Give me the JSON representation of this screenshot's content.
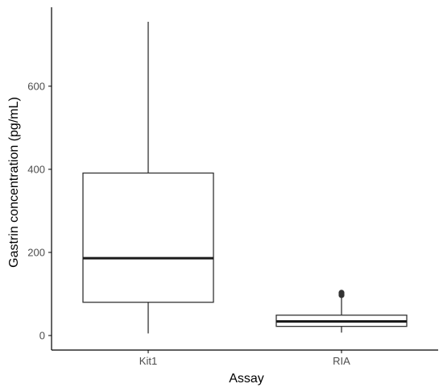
{
  "chart_data": {
    "type": "box",
    "title": "",
    "xlabel": "Assay",
    "ylabel": "Gastrin concentration (pg/mL)",
    "categories": [
      "Kit1",
      "RIA"
    ],
    "boxes": [
      {
        "category": "Kit1",
        "whisker_low": 5,
        "q1": 80,
        "median": 186,
        "q3": 391,
        "whisker_high": 755,
        "outliers": []
      },
      {
        "category": "RIA",
        "whisker_low": 7,
        "q1": 22,
        "median": 34,
        "q3": 49,
        "whisker_high": 91,
        "outliers": [
          97,
          100,
          103
        ]
      }
    ],
    "y_ticks": [
      0,
      200,
      400,
      600
    ],
    "y_tick_labels": [
      "0",
      "200",
      "400",
      "600"
    ],
    "ylim": [
      -35,
      790
    ],
    "grid": false,
    "legend": "none",
    "colors": {
      "box_fill": "#ffffff",
      "box_stroke": "#333333",
      "median_stroke": "#1a1a1a",
      "axis": "#000000",
      "outlier": "#333333"
    }
  }
}
